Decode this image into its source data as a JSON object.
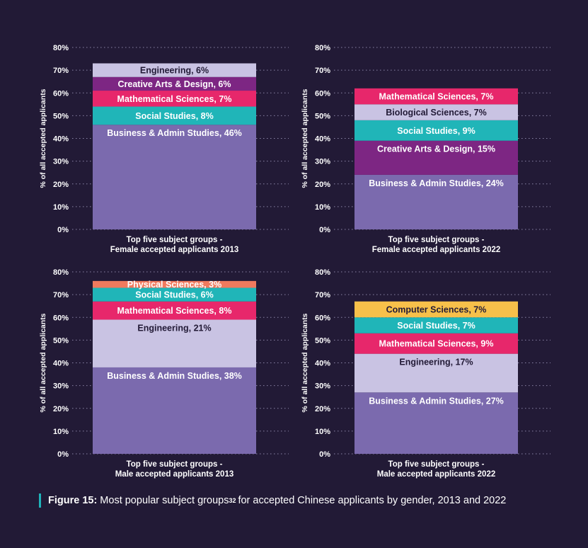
{
  "chart_data": [
    {
      "type": "bar",
      "stacked": true,
      "ylabel": "% of all accepted applicants",
      "ylim": [
        0,
        80
      ],
      "yticks": [
        "0%",
        "10%",
        "20%",
        "30%",
        "40%",
        "50%",
        "60%",
        "70%",
        "80%"
      ],
      "xlabel_line1": "Top five subject groups -",
      "xlabel_line2": "Female accepted applicants 2013",
      "segments": [
        {
          "label": "Business & Admin Studies, 46%",
          "value": 46,
          "color": "#7b6aae"
        },
        {
          "label": "Social Studies, 8%",
          "value": 8,
          "color": "#20b5b8"
        },
        {
          "label": "Mathematical Sciences, 7%",
          "value": 7,
          "color": "#e7276b"
        },
        {
          "label": "Creative Arts & Design, 6%",
          "value": 6,
          "color": "#7d2683"
        },
        {
          "label": "Engineering, 6%",
          "value": 6,
          "color": "#c9c3e3"
        }
      ]
    },
    {
      "type": "bar",
      "stacked": true,
      "ylabel": "% of all accepted applicants",
      "ylim": [
        0,
        80
      ],
      "yticks": [
        "0%",
        "10%",
        "20%",
        "30%",
        "40%",
        "50%",
        "60%",
        "70%",
        "80%"
      ],
      "xlabel_line1": "Top five subject groups -",
      "xlabel_line2": "Female accepted applicants 2022",
      "segments": [
        {
          "label": "Business & Admin Studies, 24%",
          "value": 24,
          "color": "#7b6aae"
        },
        {
          "label": "Creative Arts & Design, 15%",
          "value": 15,
          "color": "#7d2683"
        },
        {
          "label": "Social Studies, 9%",
          "value": 9,
          "color": "#20b5b8"
        },
        {
          "label": "Biological Sciences, 7%",
          "value": 7,
          "color": "#c9c3e3"
        },
        {
          "label": "Mathematical Sciences, 7%",
          "value": 7,
          "color": "#e7276b"
        }
      ]
    },
    {
      "type": "bar",
      "stacked": true,
      "ylabel": "% of all accepted applicants",
      "ylim": [
        0,
        80
      ],
      "yticks": [
        "0%",
        "10%",
        "20%",
        "30%",
        "40%",
        "50%",
        "60%",
        "70%",
        "80%"
      ],
      "xlabel_line1": "Top five subject groups -",
      "xlabel_line2": "Male accepted applicants 2013",
      "segments": [
        {
          "label": "Business & Admin Studies, 38%",
          "value": 38,
          "color": "#7b6aae"
        },
        {
          "label": "Engineering, 21%",
          "value": 21,
          "color": "#c9c3e3"
        },
        {
          "label": "Mathematical Sciences, 8%",
          "value": 8,
          "color": "#e7276b"
        },
        {
          "label": "Social Studies, 6%",
          "value": 6,
          "color": "#20b5b8"
        },
        {
          "label": "Physical Sciences, 3%",
          "value": 3,
          "color": "#f07a5e"
        }
      ]
    },
    {
      "type": "bar",
      "stacked": true,
      "ylabel": "% of all accepted applicants",
      "ylim": [
        0,
        80
      ],
      "yticks": [
        "0%",
        "10%",
        "20%",
        "30%",
        "40%",
        "50%",
        "60%",
        "70%",
        "80%"
      ],
      "xlabel_line1": "Top five subject groups -",
      "xlabel_line2": "Male accepted applicants 2022",
      "segments": [
        {
          "label": "Business & Admin Studies, 27%",
          "value": 27,
          "color": "#7b6aae"
        },
        {
          "label": "Engineering, 17%",
          "value": 17,
          "color": "#c9c3e3"
        },
        {
          "label": "Mathematical Sciences, 9%",
          "value": 9,
          "color": "#e7276b"
        },
        {
          "label": "Social Studies, 7%",
          "value": 7,
          "color": "#20b5b8"
        },
        {
          "label": "Computer Sciences, 7%",
          "value": 7,
          "color": "#f7c04a"
        }
      ]
    }
  ],
  "caption": {
    "figure_label": "Figure 15:",
    "text_before_note": "Most popular subject groups",
    "note": "32",
    "text_after_note": "for accepted Chinese applicants by gender, 2013 and 2022"
  },
  "colors": {
    "background": "#221a36",
    "text": "#ffffff",
    "caption_bar": "#1fb3b9",
    "gridline": "#8a84a6"
  }
}
